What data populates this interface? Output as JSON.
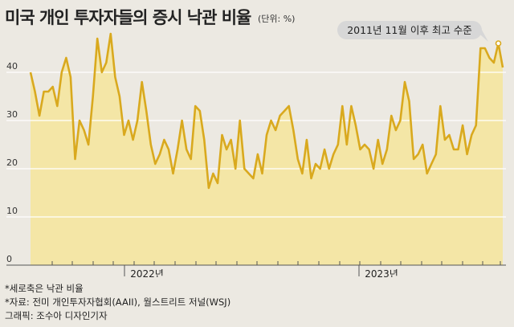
{
  "header": {
    "title": "미국 개인 투자자들의 증시 낙관 비율",
    "unit": "(단위: %)"
  },
  "notes": {
    "line1": "*세로축은 낙관 비율",
    "line2": "*자료: 전미 개인투자자협회(AAII), 월스트리트 저널(WSJ)",
    "line3": "그래픽: 조수아 디자인기자"
  },
  "colors": {
    "line": "#d9a91e",
    "fill": "#f4e6a6",
    "background": "#ece9e2",
    "grid": "#ffffff",
    "callout": "#d7d7d7"
  },
  "chart_data": {
    "type": "area",
    "ylim": [
      0,
      50
    ],
    "yticks": [
      0,
      10,
      20,
      30,
      40
    ],
    "xlabels": [
      "2022년",
      "2023년"
    ],
    "annotation": "2011년 11월 이후 최고 수준",
    "series": [
      {
        "values": [
          40,
          36,
          31,
          36,
          36,
          37,
          33,
          40,
          43,
          39,
          22,
          30,
          28,
          25,
          35,
          47,
          40,
          42,
          48,
          39,
          35,
          27,
          30,
          26,
          30,
          38,
          32,
          25,
          21,
          23,
          26,
          24,
          19,
          24,
          30,
          24,
          22,
          33,
          32,
          26,
          16,
          19,
          17,
          27,
          24,
          26,
          20,
          30,
          20,
          19,
          18,
          23,
          19,
          27,
          30,
          28,
          31,
          32,
          33,
          28,
          22,
          19,
          26,
          18,
          21,
          20,
          24,
          20,
          23,
          25,
          33,
          25,
          33,
          29,
          24,
          25,
          24,
          20,
          26,
          21,
          24,
          31,
          28,
          30,
          38,
          34,
          22,
          23,
          25,
          19,
          21,
          23,
          33,
          26,
          27,
          24,
          24,
          29,
          23,
          27,
          29,
          45,
          45,
          43,
          42,
          46,
          41
        ]
      }
    ]
  }
}
